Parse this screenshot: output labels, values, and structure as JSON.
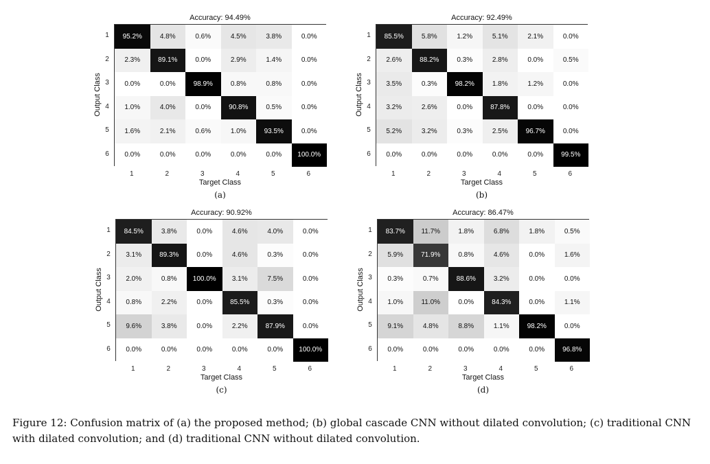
{
  "chart_data": [
    {
      "type": "heatmap",
      "title": "Accuracy: 94.49%",
      "xlabel": "Target Class",
      "ylabel": "Output Class",
      "x_ticks": [
        "1",
        "2",
        "3",
        "4",
        "5",
        "6"
      ],
      "y_ticks": [
        "1",
        "2",
        "3",
        "4",
        "5",
        "6"
      ],
      "sublabel": "(a)",
      "values": [
        [
          "95.2%",
          "4.8%",
          "0.6%",
          "4.5%",
          "3.8%",
          "0.0%"
        ],
        [
          "2.3%",
          "89.1%",
          "0.0%",
          "2.9%",
          "1.4%",
          "0.0%"
        ],
        [
          "0.0%",
          "0.0%",
          "98.9%",
          "0.8%",
          "0.8%",
          "0.0%"
        ],
        [
          "1.0%",
          "4.0%",
          "0.0%",
          "90.8%",
          "0.5%",
          "0.0%"
        ],
        [
          "1.6%",
          "2.1%",
          "0.6%",
          "1.0%",
          "93.5%",
          "0.0%"
        ],
        [
          "0.0%",
          "0.0%",
          "0.0%",
          "0.0%",
          "0.0%",
          "100.0%"
        ]
      ]
    },
    {
      "type": "heatmap",
      "title": "Accuracy: 92.49%",
      "xlabel": "Target Class",
      "ylabel": "Output Class",
      "x_ticks": [
        "1",
        "2",
        "3",
        "4",
        "5",
        "6"
      ],
      "y_ticks": [
        "1",
        "2",
        "3",
        "4",
        "5",
        "6"
      ],
      "sublabel": "(b)",
      "values": [
        [
          "85.5%",
          "5.8%",
          "1.2%",
          "5.1%",
          "2.1%",
          "0.0%"
        ],
        [
          "2.6%",
          "88.2%",
          "0.3%",
          "2.8%",
          "0.0%",
          "0.5%"
        ],
        [
          "3.5%",
          "0.3%",
          "98.2%",
          "1.8%",
          "1.2%",
          "0.0%"
        ],
        [
          "3.2%",
          "2.6%",
          "0.0%",
          "87.8%",
          "0.0%",
          "0.0%"
        ],
        [
          "5.2%",
          "3.2%",
          "0.3%",
          "2.5%",
          "96.7%",
          "0.0%"
        ],
        [
          "0.0%",
          "0.0%",
          "0.0%",
          "0.0%",
          "0.0%",
          "99.5%"
        ]
      ]
    },
    {
      "type": "heatmap",
      "title": "Accuracy: 90.92%",
      "xlabel": "Target Class",
      "ylabel": "Output Class",
      "x_ticks": [
        "1",
        "2",
        "3",
        "4",
        "5",
        "6"
      ],
      "y_ticks": [
        "1",
        "2",
        "3",
        "4",
        "5",
        "6"
      ],
      "sublabel": "(c)",
      "values": [
        [
          "84.5%",
          "3.8%",
          "0.0%",
          "4.6%",
          "4.0%",
          "0.0%"
        ],
        [
          "3.1%",
          "89.3%",
          "0.0%",
          "4.6%",
          "0.3%",
          "0.0%"
        ],
        [
          "2.0%",
          "0.8%",
          "100.0%",
          "3.1%",
          "7.5%",
          "0.0%"
        ],
        [
          "0.8%",
          "2.2%",
          "0.0%",
          "85.5%",
          "0.3%",
          "0.0%"
        ],
        [
          "9.6%",
          "3.8%",
          "0.0%",
          "2.2%",
          "87.9%",
          "0.0%"
        ],
        [
          "0.0%",
          "0.0%",
          "0.0%",
          "0.0%",
          "0.0%",
          "100.0%"
        ]
      ]
    },
    {
      "type": "heatmap",
      "title": "Accuracy: 86.47%",
      "xlabel": "Target Class",
      "ylabel": "Output Class",
      "x_ticks": [
        "1",
        "2",
        "3",
        "4",
        "5",
        "6"
      ],
      "y_ticks": [
        "1",
        "2",
        "3",
        "4",
        "5",
        "6"
      ],
      "sublabel": "(d)",
      "values": [
        [
          "83.7%",
          "11.7%",
          "1.8%",
          "6.8%",
          "1.8%",
          "0.5%"
        ],
        [
          "5.9%",
          "71.9%",
          "0.8%",
          "4.6%",
          "0.0%",
          "1.6%"
        ],
        [
          "0.3%",
          "0.7%",
          "88.6%",
          "3.2%",
          "0.0%",
          "0.0%"
        ],
        [
          "1.0%",
          "11.0%",
          "0.0%",
          "84.3%",
          "0.0%",
          "1.1%"
        ],
        [
          "9.1%",
          "4.8%",
          "8.8%",
          "1.1%",
          "98.2%",
          "0.0%"
        ],
        [
          "0.0%",
          "0.0%",
          "0.0%",
          "0.0%",
          "0.0%",
          "96.8%"
        ]
      ]
    }
  ],
  "caption": "Figure 12: Confusion matrix of (a) the proposed method; (b) global cascade CNN without dilated convolution; (c) traditional CNN with dilated convolution; and (d) traditional CNN without dilated convolution."
}
